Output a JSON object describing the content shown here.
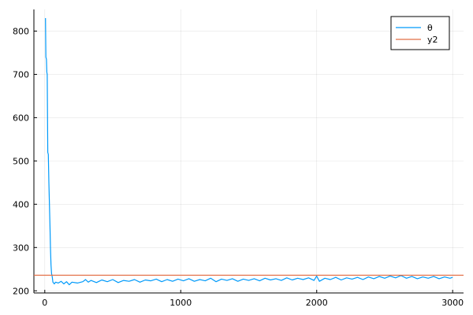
{
  "chart_data": {
    "type": "line",
    "xlim": [
      -80,
      3080
    ],
    "ylim": [
      195,
      850
    ],
    "x_ticks": [
      0,
      1000,
      2000,
      3000
    ],
    "y_ticks": [
      200,
      300,
      400,
      500,
      600,
      700,
      800
    ],
    "grid": true,
    "legend_position": "top-right",
    "series": [
      {
        "name": "θ",
        "color": "#009AFA",
        "points": [
          [
            5,
            830
          ],
          [
            8,
            740
          ],
          [
            12,
            735
          ],
          [
            15,
            705
          ],
          [
            18,
            700
          ],
          [
            22,
            520
          ],
          [
            26,
            515
          ],
          [
            30,
            450
          ],
          [
            34,
            400
          ],
          [
            38,
            350
          ],
          [
            42,
            300
          ],
          [
            46,
            260
          ],
          [
            50,
            240
          ],
          [
            55,
            232
          ],
          [
            60,
            220
          ],
          [
            70,
            216
          ],
          [
            80,
            220
          ],
          [
            100,
            218
          ],
          [
            120,
            222
          ],
          [
            140,
            216
          ],
          [
            160,
            221
          ],
          [
            180,
            214
          ],
          [
            200,
            220
          ],
          [
            240,
            218
          ],
          [
            280,
            221
          ],
          [
            300,
            226
          ],
          [
            320,
            220
          ],
          [
            340,
            224
          ],
          [
            380,
            219
          ],
          [
            420,
            225
          ],
          [
            460,
            221
          ],
          [
            500,
            226
          ],
          [
            540,
            219
          ],
          [
            580,
            224
          ],
          [
            620,
            222
          ],
          [
            660,
            226
          ],
          [
            700,
            220
          ],
          [
            740,
            225
          ],
          [
            780,
            223
          ],
          [
            820,
            227
          ],
          [
            860,
            221
          ],
          [
            900,
            226
          ],
          [
            940,
            222
          ],
          [
            980,
            227
          ],
          [
            1020,
            223
          ],
          [
            1060,
            228
          ],
          [
            1100,
            222
          ],
          [
            1140,
            226
          ],
          [
            1180,
            223
          ],
          [
            1220,
            229
          ],
          [
            1260,
            221
          ],
          [
            1300,
            227
          ],
          [
            1340,
            224
          ],
          [
            1380,
            228
          ],
          [
            1420,
            222
          ],
          [
            1460,
            227
          ],
          [
            1500,
            224
          ],
          [
            1540,
            228
          ],
          [
            1580,
            223
          ],
          [
            1620,
            229
          ],
          [
            1660,
            225
          ],
          [
            1700,
            228
          ],
          [
            1740,
            224
          ],
          [
            1780,
            230
          ],
          [
            1820,
            225
          ],
          [
            1860,
            229
          ],
          [
            1900,
            226
          ],
          [
            1940,
            230
          ],
          [
            1980,
            224
          ],
          [
            2000,
            234
          ],
          [
            2020,
            222
          ],
          [
            2060,
            229
          ],
          [
            2100,
            226
          ],
          [
            2140,
            231
          ],
          [
            2180,
            225
          ],
          [
            2220,
            230
          ],
          [
            2260,
            227
          ],
          [
            2300,
            231
          ],
          [
            2340,
            226
          ],
          [
            2380,
            232
          ],
          [
            2420,
            228
          ],
          [
            2460,
            233
          ],
          [
            2500,
            229
          ],
          [
            2540,
            234
          ],
          [
            2580,
            230
          ],
          [
            2620,
            235
          ],
          [
            2660,
            229
          ],
          [
            2700,
            233
          ],
          [
            2740,
            228
          ],
          [
            2780,
            232
          ],
          [
            2820,
            229
          ],
          [
            2860,
            233
          ],
          [
            2900,
            228
          ],
          [
            2940,
            232
          ],
          [
            2980,
            229
          ],
          [
            3000,
            231
          ]
        ]
      },
      {
        "name": "y2",
        "color": "#E26F46",
        "hline": 236
      }
    ]
  }
}
